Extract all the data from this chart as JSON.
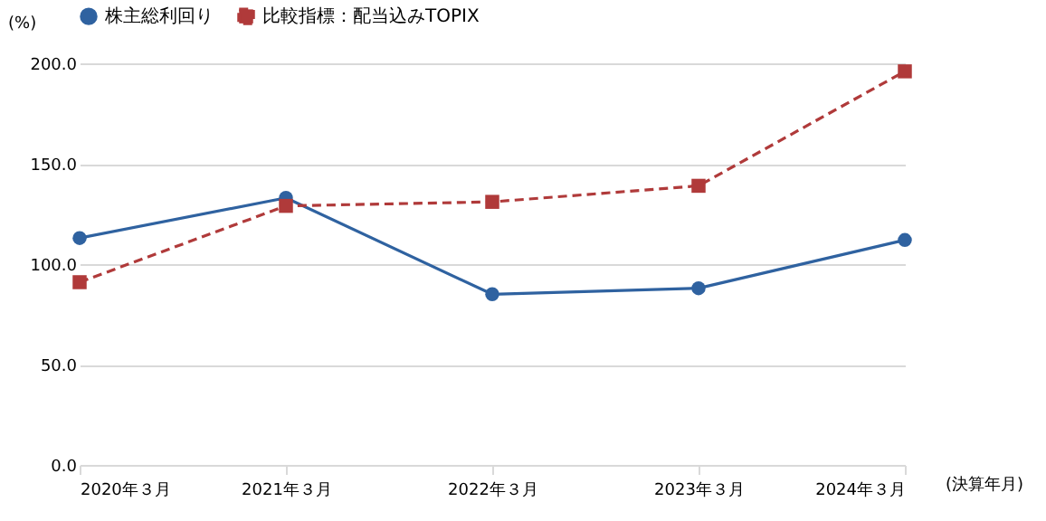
{
  "chart_data": {
    "type": "line",
    "categories": [
      "2020年３月",
      "2021年３月",
      "2022年３月",
      "2023年３月",
      "2024年３月"
    ],
    "xlabel": "(決算年月)",
    "ylabel": "(%)",
    "series": [
      {
        "name": "株主総利回り",
        "color": "#2f62a0",
        "marker": "circle",
        "line_style": "solid",
        "values": [
          113,
          133,
          85,
          88,
          112
        ]
      },
      {
        "name": "比較指標：配当込みTOPIX",
        "color": "#b03a3a",
        "marker": "square",
        "line_style": "dashed",
        "values": [
          91,
          129,
          131,
          139,
          196
        ]
      }
    ],
    "ylim": [
      0,
      200
    ],
    "yticks": [
      {
        "value": 0,
        "label": "0.0"
      },
      {
        "value": 50,
        "label": "50.0"
      },
      {
        "value": 100,
        "label": "100.0"
      },
      {
        "value": 150,
        "label": "150.0"
      },
      {
        "value": 200,
        "label": "200.0"
      }
    ],
    "grid": "y",
    "legend": "top"
  }
}
